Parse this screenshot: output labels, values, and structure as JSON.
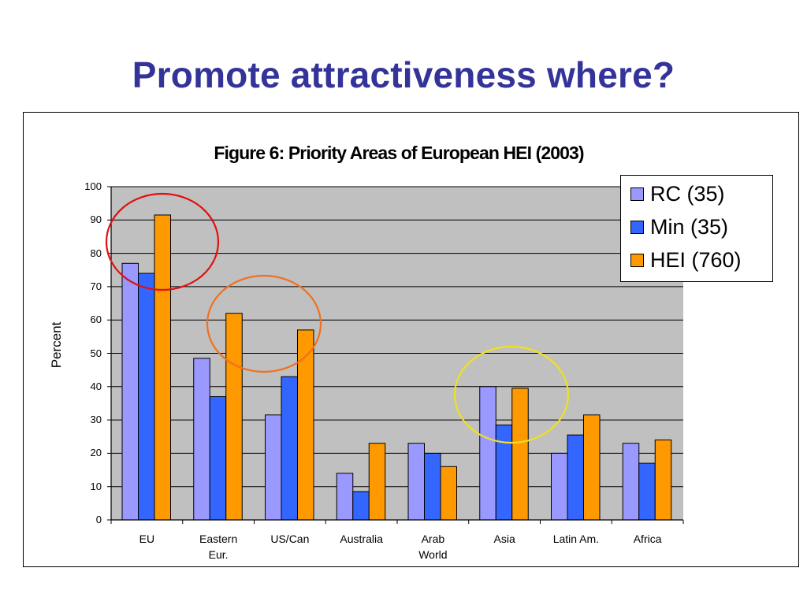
{
  "slide": {
    "title": "Promote attractiveness where?"
  },
  "chart_data": {
    "type": "bar",
    "title": "Figure 6: Priority Areas of European HEI (2003)",
    "xlabel": "",
    "ylabel": "Percent",
    "ylim": [
      0,
      100
    ],
    "yticks": [
      0,
      10,
      20,
      30,
      40,
      50,
      60,
      70,
      80,
      90,
      100
    ],
    "grid": true,
    "legend_position": "top-right",
    "categories": [
      "EU",
      "Eastern\nEur.",
      "US/Can",
      "Australia",
      "Arab\nWorld",
      "Asia",
      "Latin Am.",
      "Africa"
    ],
    "series": [
      {
        "name": "RC (35)",
        "color": "#9999ff",
        "values": [
          77,
          48.5,
          31.5,
          14,
          23,
          40,
          20,
          23
        ]
      },
      {
        "name": "Min (35)",
        "color": "#3366ff",
        "values": [
          74,
          37,
          43,
          8.5,
          20,
          28.5,
          25.5,
          17
        ]
      },
      {
        "name": "HEI (760)",
        "color": "#ff9900",
        "values": [
          91.5,
          62,
          57,
          23,
          16,
          39.5,
          31.5,
          24
        ]
      }
    ],
    "annotations": [
      {
        "shape": "ellipse",
        "color": "#e01010",
        "around": "EU"
      },
      {
        "shape": "ellipse",
        "color": "#f07020",
        "around": "Eastern Eur. / US/Can"
      },
      {
        "shape": "ellipse",
        "color": "#f0e020",
        "around": "Asia"
      }
    ],
    "plot_background": "#c0c0c0"
  }
}
